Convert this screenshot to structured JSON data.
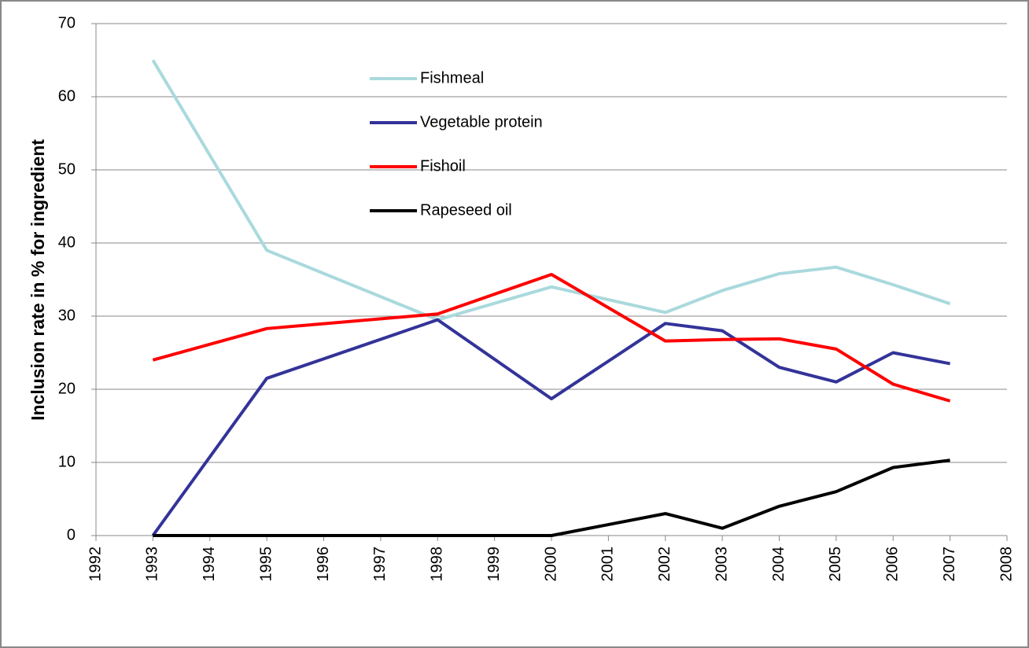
{
  "chart_data": {
    "type": "line",
    "y_label": "Inclusion rate in % for ingredient",
    "x": [
      1993,
      1995,
      1998,
      2000,
      2002,
      2003,
      2004,
      2005,
      2006,
      2007
    ],
    "series": [
      {
        "name": "Fishmeal",
        "color": "#a9d9dd",
        "values": [
          65,
          39,
          29.5,
          34,
          30.5,
          33.5,
          35.8,
          36.7,
          34.3,
          31.7
        ]
      },
      {
        "name": "Vegetable protein",
        "color": "#333399",
        "values": [
          0,
          21.5,
          29.5,
          18.7,
          29,
          28,
          23,
          21,
          25,
          23.5
        ]
      },
      {
        "name": "Fishoil",
        "color": "#ff0000",
        "values": [
          24,
          28.3,
          30.3,
          35.7,
          26.6,
          26.8,
          26.9,
          25.5,
          20.7,
          18.4
        ]
      },
      {
        "name": "Rapeseed oil",
        "color": "#000000",
        "values": [
          0,
          0,
          0,
          0,
          3,
          1,
          4,
          6,
          9.3,
          10.3
        ]
      }
    ],
    "xlim": [
      1992,
      2008
    ],
    "xticks": [
      1992,
      1993,
      1994,
      1995,
      1996,
      1997,
      1998,
      1999,
      2000,
      2001,
      2002,
      2003,
      2004,
      2005,
      2006,
      2007,
      2008
    ],
    "ylim": [
      0,
      70
    ],
    "yticks": [
      0,
      10,
      20,
      30,
      40,
      50,
      60,
      70
    ],
    "grid": true,
    "legend": "top"
  }
}
